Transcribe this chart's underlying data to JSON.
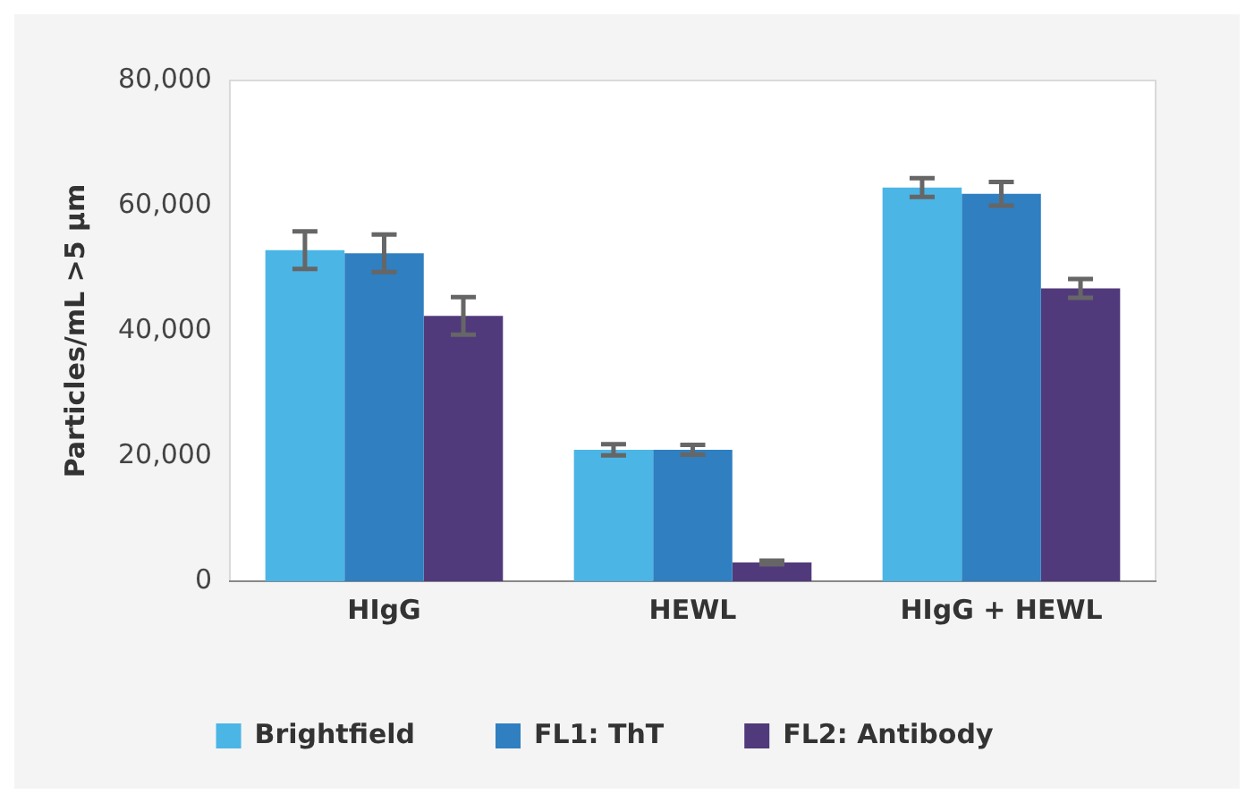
{
  "chart_data": {
    "type": "bar",
    "ylabel": "Particles/mL >5 µm",
    "categories": [
      "HIgG",
      "HEWL",
      "HIgG + HEWL"
    ],
    "series": [
      {
        "name": "Brightfield",
        "color": "#4bb5e6",
        "values": [
          52900,
          21000,
          62900
        ],
        "errors": [
          3000,
          900,
          1500
        ]
      },
      {
        "name": "FL1: ThT",
        "color": "#2f7fc1",
        "values": [
          52400,
          21000,
          61900
        ],
        "errors": [
          3000,
          800,
          1900
        ]
      },
      {
        "name": "FL2: Antibody",
        "color": "#513a7b",
        "values": [
          42400,
          3000,
          46800
        ],
        "errors": [
          3000,
          300,
          1500
        ]
      }
    ],
    "ylim": [
      0,
      80000
    ],
    "yticks": [
      0,
      {
        "value": 20000,
        "label": "20,000"
      },
      {
        "value": 40000,
        "label": "40,000"
      },
      {
        "value": 60000,
        "label": "60,000"
      },
      {
        "value": 80000,
        "label": "80,000"
      }
    ],
    "grid": false,
    "legend": "bottom"
  }
}
